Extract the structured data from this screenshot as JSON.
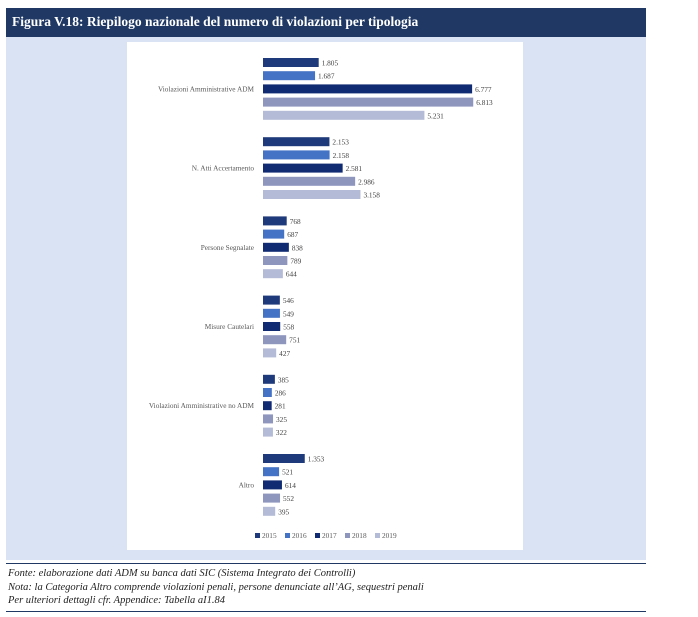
{
  "figure": {
    "title": "Figura V.18: Riepilogo nazionale del numero di violazioni per tipologia"
  },
  "chart_data": {
    "type": "bar",
    "orientation": "horizontal",
    "categories": [
      "Violazioni Amministrative ADM",
      "N. Atti Accertamento",
      "Persone Segnalate",
      "Misure Cautelari",
      "Violazioni Amministrative no ADM",
      "Altro"
    ],
    "series": [
      {
        "name": "2015",
        "color": "#1f3a7a",
        "values": [
          1805,
          2153,
          768,
          546,
          385,
          1353
        ]
      },
      {
        "name": "2016",
        "color": "#4472c4",
        "values": [
          1687,
          2158,
          687,
          549,
          286,
          521
        ]
      },
      {
        "name": "2017",
        "color": "#112b73",
        "values": [
          6777,
          2581,
          838,
          558,
          281,
          614
        ]
      },
      {
        "name": "2018",
        "color": "#8e96be",
        "values": [
          6813,
          2986,
          789,
          751,
          325,
          552
        ]
      },
      {
        "name": "2019",
        "color": "#b4bbd6",
        "values": [
          5231,
          3158,
          644,
          427,
          322,
          395
        ]
      }
    ],
    "value_labels": [
      [
        "1.805",
        "2.153",
        "768",
        "546",
        "385",
        "1.353"
      ],
      [
        "1.687",
        "2.158",
        "687",
        "549",
        "286",
        "521"
      ],
      [
        "6.777",
        "2.581",
        "838",
        "558",
        "281",
        "614"
      ],
      [
        "6.813",
        "2.986",
        "789",
        "751",
        "325",
        "552"
      ],
      [
        "5.231",
        "3.158",
        "644",
        "427",
        "322",
        "395"
      ]
    ],
    "xlim": [
      0,
      7000
    ],
    "grid": false,
    "legend_position": "bottom"
  },
  "notes": {
    "source": "Fonte: elaborazione dati ADM su banca dati SIC (Sistema Integrato dei Controlli)",
    "note": "Nota: la Categoria Altro comprende violazioni penali, persone denunciate all’AG, sequestri penali",
    "details": "Per ulteriori dettagli cfr. Appendice: Tabella aI1.84"
  }
}
